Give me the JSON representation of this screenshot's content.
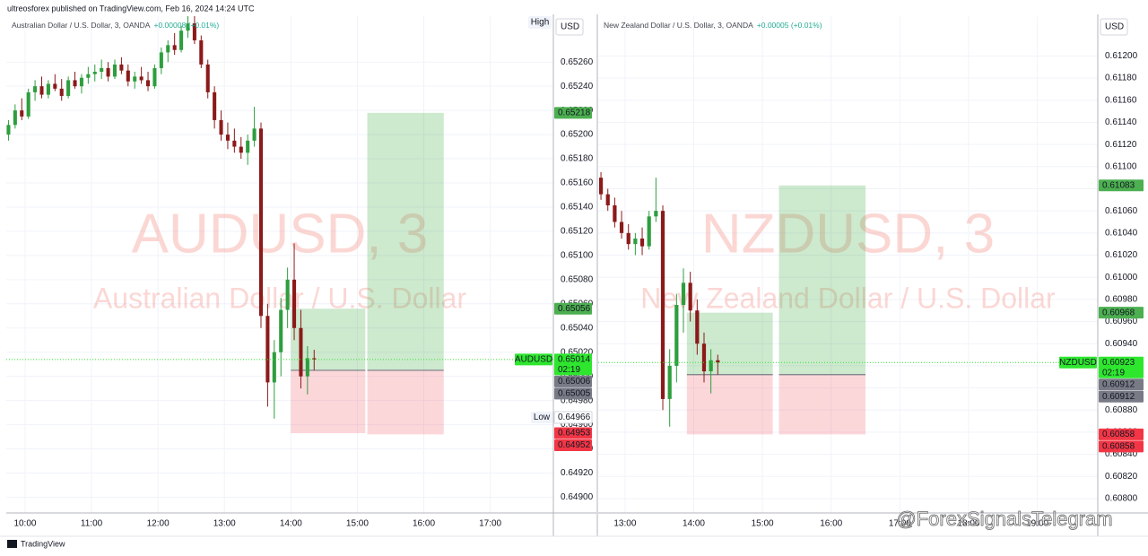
{
  "header": {
    "publisher": "ultreosforex published on TradingView.com, Feb 16, 2024 14:24 UTC"
  },
  "chart_data": [
    {
      "type": "candlestick",
      "title": "AUDUSD, 3",
      "subtitle": "Australian Dollar / U.S. Dollar",
      "header": "Australian Dollar / U.S. Dollar, 3, OANDA",
      "change": "+0.00008 (+0.01%)",
      "currency": "USD",
      "high_tag": "High",
      "countdown": "02:19",
      "up_color": "#2e9e3e",
      "down_color": "#8b1a1a",
      "grid": true,
      "x": [
        9.75,
        9.85,
        9.95,
        10.05,
        10.15,
        10.25,
        10.35,
        10.45,
        10.55,
        10.65,
        10.75,
        10.85,
        10.95,
        11.05,
        11.15,
        11.25,
        11.35,
        11.45,
        11.55,
        11.65,
        11.75,
        11.85,
        11.95,
        12.05,
        12.15,
        12.25,
        12.35,
        12.45,
        12.55,
        12.65,
        12.75,
        12.85,
        12.95,
        13.05,
        13.15,
        13.25,
        13.35,
        13.45,
        13.55,
        13.65,
        13.75,
        13.85,
        13.95,
        14.05,
        14.15,
        14.25,
        14.35
      ],
      "open": [
        0.652,
        0.65208,
        0.6522,
        0.65215,
        0.65235,
        0.6524,
        0.65233,
        0.65242,
        0.65238,
        0.65232,
        0.65245,
        0.6524,
        0.65247,
        0.6525,
        0.65252,
        0.65255,
        0.65248,
        0.65258,
        0.65253,
        0.65244,
        0.65248,
        0.65245,
        0.6524,
        0.65255,
        0.65268,
        0.65274,
        0.6527,
        0.65286,
        0.65292,
        0.65278,
        0.65258,
        0.65235,
        0.65212,
        0.652,
        0.65195,
        0.6519,
        0.65185,
        0.65195,
        0.65205,
        0.6505,
        0.64995,
        0.6502,
        0.65055,
        0.6508,
        0.6504,
        0.65,
        0.65015
      ],
      "high": [
        0.65212,
        0.65225,
        0.6523,
        0.65238,
        0.65245,
        0.65248,
        0.65245,
        0.6525,
        0.65246,
        0.65248,
        0.65252,
        0.6525,
        0.65256,
        0.65258,
        0.65262,
        0.6526,
        0.65262,
        0.65264,
        0.65258,
        0.65252,
        0.65256,
        0.65252,
        0.65258,
        0.65272,
        0.65278,
        0.65284,
        0.6529,
        0.653,
        0.65298,
        0.65282,
        0.65262,
        0.6524,
        0.6522,
        0.6521,
        0.65205,
        0.65198,
        0.652,
        0.65223,
        0.6521,
        0.6506,
        0.6503,
        0.65065,
        0.6509,
        0.6511,
        0.65055,
        0.65025,
        0.65022
      ],
      "low": [
        0.65195,
        0.65205,
        0.65212,
        0.65213,
        0.65228,
        0.6523,
        0.6523,
        0.65236,
        0.65228,
        0.6523,
        0.65238,
        0.65234,
        0.65242,
        0.65244,
        0.65246,
        0.65244,
        0.65246,
        0.6525,
        0.6524,
        0.65238,
        0.65242,
        0.65236,
        0.65238,
        0.6525,
        0.6526,
        0.65266,
        0.65268,
        0.6528,
        0.65275,
        0.65255,
        0.6523,
        0.65205,
        0.65195,
        0.65188,
        0.65185,
        0.6518,
        0.65175,
        0.6519,
        0.6504,
        0.64975,
        0.64965,
        0.65,
        0.6504,
        0.6503,
        0.6499,
        0.64985,
        0.65005
      ],
      "close": [
        0.65208,
        0.6522,
        0.65215,
        0.65235,
        0.6524,
        0.65233,
        0.65242,
        0.65238,
        0.65232,
        0.65245,
        0.6524,
        0.65247,
        0.6525,
        0.65252,
        0.65255,
        0.65248,
        0.65258,
        0.65253,
        0.65244,
        0.65248,
        0.65245,
        0.6524,
        0.65255,
        0.65268,
        0.65274,
        0.6527,
        0.65286,
        0.65292,
        0.65278,
        0.65258,
        0.65235,
        0.65212,
        0.652,
        0.65195,
        0.6519,
        0.65185,
        0.65195,
        0.65205,
        0.6505,
        0.64995,
        0.6502,
        0.65055,
        0.6508,
        0.6504,
        0.65,
        0.65015,
        0.65014
      ],
      "xlim": [
        9.717,
        17.95
      ],
      "ylim": [
        0.64887,
        0.65298
      ],
      "xticks": [
        {
          "value": 10,
          "label": "10:00"
        },
        {
          "value": 11,
          "label": "11:00"
        },
        {
          "value": 12,
          "label": "12:00"
        },
        {
          "value": 13,
          "label": "13:00"
        },
        {
          "value": 14,
          "label": "14:00"
        },
        {
          "value": 15,
          "label": "15:00"
        },
        {
          "value": 16,
          "label": "16:00"
        },
        {
          "value": 17,
          "label": "17:00"
        }
      ],
      "yticks": [
        {
          "value": 0.649,
          "label": "0.64900"
        },
        {
          "value": 0.6492,
          "label": "0.64920"
        },
        {
          "value": 0.6494,
          "label": "0.64940"
        },
        {
          "value": 0.6496,
          "label": "0.64960"
        },
        {
          "value": 0.6498,
          "label": "0.64980"
        },
        {
          "value": 0.65,
          "label": "0.65000"
        },
        {
          "value": 0.6502,
          "label": "0.65020"
        },
        {
          "value": 0.6504,
          "label": "0.65040"
        },
        {
          "value": 0.6506,
          "label": "0.65060"
        },
        {
          "value": 0.6508,
          "label": "0.65080"
        },
        {
          "value": 0.651,
          "label": "0.65100"
        },
        {
          "value": 0.6512,
          "label": "0.65120"
        },
        {
          "value": 0.6514,
          "label": "0.65140"
        },
        {
          "value": 0.6516,
          "label": "0.65160"
        },
        {
          "value": 0.6518,
          "label": "0.65180"
        },
        {
          "value": 0.652,
          "label": "0.65200"
        },
        {
          "value": 0.6522,
          "label": "0.65220"
        },
        {
          "value": 0.6524,
          "label": "0.65240"
        },
        {
          "value": 0.6526,
          "label": "0.65260"
        }
      ],
      "positions": [
        {
          "start": 14.0,
          "end": 15.12,
          "entry": 0.65005,
          "target": 0.65056,
          "stop": 0.64953
        },
        {
          "start": 15.15,
          "end": 16.3,
          "entry": 0.65005,
          "target": 0.65218,
          "stop": 0.64952
        }
      ],
      "price_labels": [
        {
          "value": 0.65218,
          "color": "#4caf50"
        },
        {
          "value": 0.65056,
          "color": "#4caf50"
        },
        {
          "value": 0.65014,
          "color": "#2ee62e",
          "tag": "AUDUSD"
        },
        {
          "value": 0.65006,
          "color": "#787b86"
        },
        {
          "value": 0.65005,
          "color": "#787b86"
        },
        {
          "value": 0.64966,
          "color": "#ffffff",
          "tag": "Low"
        },
        {
          "value": 0.64953,
          "color": "#f23645"
        },
        {
          "value": 0.64952,
          "color": "#f23645"
        }
      ]
    },
    {
      "type": "candlestick",
      "title": "NZDUSD, 3",
      "subtitle": "New Zealand Dollar / U.S. Dollar",
      "header": "New Zealand Dollar / U.S. Dollar, 3, OANDA",
      "change": "+0.00005 (+0.01%)",
      "currency": "USD",
      "countdown": "02:19",
      "up_color": "#2e9e3e",
      "down_color": "#8b1a1a",
      "grid": true,
      "x": [
        12.65,
        12.75,
        12.85,
        12.95,
        13.05,
        13.15,
        13.25,
        13.35,
        13.45,
        13.55,
        13.65,
        13.75,
        13.85,
        13.95,
        14.05,
        14.15,
        14.25,
        14.35
      ],
      "open": [
        0.6109,
        0.61075,
        0.61065,
        0.6105,
        0.6104,
        0.6103,
        0.61035,
        0.61028,
        0.61055,
        0.6106,
        0.6089,
        0.6092,
        0.60975,
        0.60995,
        0.6097,
        0.6094,
        0.60915,
        0.60925
      ],
      "high": [
        0.61095,
        0.6108,
        0.61072,
        0.6106,
        0.61048,
        0.6104,
        0.61045,
        0.6106,
        0.6109,
        0.61065,
        0.60935,
        0.60985,
        0.61008,
        0.61005,
        0.6098,
        0.6095,
        0.60935,
        0.6093
      ],
      "low": [
        0.6107,
        0.6106,
        0.61045,
        0.61035,
        0.61025,
        0.6102,
        0.6102,
        0.61025,
        0.6105,
        0.6088,
        0.60865,
        0.60905,
        0.6095,
        0.6096,
        0.6093,
        0.60905,
        0.60895,
        0.60912
      ],
      "close": [
        0.61075,
        0.61065,
        0.6105,
        0.6104,
        0.6103,
        0.61035,
        0.61028,
        0.61055,
        0.6106,
        0.6089,
        0.6092,
        0.60975,
        0.60995,
        0.6097,
        0.6094,
        0.60915,
        0.60925,
        0.60923
      ],
      "xlim": [
        12.61,
        19.88
      ],
      "ylim": [
        0.60787,
        0.61236
      ],
      "xticks": [
        {
          "value": 13,
          "label": "13:00"
        },
        {
          "value": 14,
          "label": "14:00"
        },
        {
          "value": 15,
          "label": "15:00"
        },
        {
          "value": 16,
          "label": "16:00"
        },
        {
          "value": 17,
          "label": "17:00"
        },
        {
          "value": 18,
          "label": "18:00"
        },
        {
          "value": 19,
          "label": "19:00"
        }
      ],
      "yticks": [
        {
          "value": 0.608,
          "label": "0.60800"
        },
        {
          "value": 0.6082,
          "label": "0.60820"
        },
        {
          "value": 0.6084,
          "label": "0.60840"
        },
        {
          "value": 0.6086,
          "label": "0.60860"
        },
        {
          "value": 0.6088,
          "label": "0.60880"
        },
        {
          "value": 0.609,
          "label": "0.60900"
        },
        {
          "value": 0.6092,
          "label": "0.60920"
        },
        {
          "value": 0.6094,
          "label": "0.60940"
        },
        {
          "value": 0.6096,
          "label": "0.60960"
        },
        {
          "value": 0.6098,
          "label": "0.60980"
        },
        {
          "value": 0.61,
          "label": "0.61000"
        },
        {
          "value": 0.6102,
          "label": "0.61020"
        },
        {
          "value": 0.6104,
          "label": "0.61040"
        },
        {
          "value": 0.6106,
          "label": "0.61060"
        },
        {
          "value": 0.6108,
          "label": "0.61080"
        },
        {
          "value": 0.611,
          "label": "0.61100"
        },
        {
          "value": 0.6112,
          "label": "0.61120"
        },
        {
          "value": 0.6114,
          "label": "0.61140"
        },
        {
          "value": 0.6116,
          "label": "0.61160"
        },
        {
          "value": 0.6118,
          "label": "0.61180"
        },
        {
          "value": 0.612,
          "label": "0.61200"
        }
      ],
      "positions": [
        {
          "start": 13.9,
          "end": 15.15,
          "entry": 0.60912,
          "target": 0.60968,
          "stop": 0.60858
        },
        {
          "start": 15.24,
          "end": 16.5,
          "entry": 0.60912,
          "target": 0.61083,
          "stop": 0.60858
        }
      ],
      "price_labels": [
        {
          "value": 0.61083,
          "color": "#4caf50"
        },
        {
          "value": 0.60968,
          "color": "#4caf50"
        },
        {
          "value": 0.60923,
          "color": "#2ee62e",
          "tag": "NZDUSD"
        },
        {
          "value": 0.60912,
          "color": "#787b86"
        },
        {
          "value": 0.60912,
          "color": "#787b86"
        },
        {
          "value": 0.60858,
          "color": "#f23645"
        },
        {
          "value": 0.60858,
          "color": "#f23645"
        }
      ]
    }
  ],
  "footer": {
    "brand": "TradingView",
    "watermark": "@ForexSignalsTelegram"
  }
}
